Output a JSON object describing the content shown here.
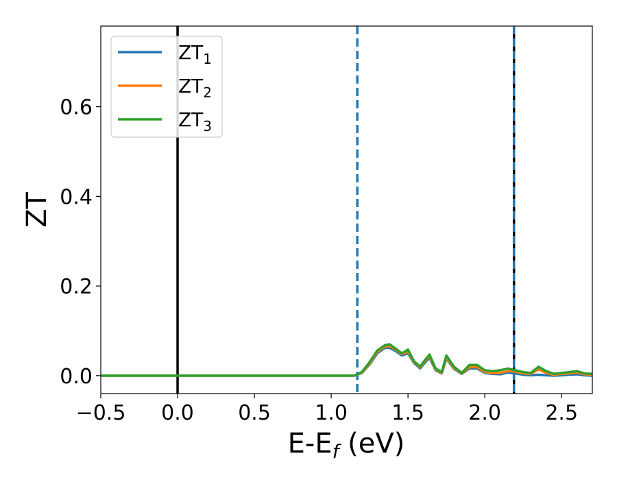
{
  "chart_data": {
    "type": "line",
    "xlabel": {
      "main": "E-E",
      "sub": "f",
      "tail": " (eV)"
    },
    "ylabel": "ZT",
    "xlim": [
      -0.5,
      2.7
    ],
    "ylim": [
      -0.04,
      0.78
    ],
    "xticks": [
      -0.5,
      0.0,
      0.5,
      1.0,
      1.5,
      2.0,
      2.5
    ],
    "xtick_labels": [
      "−0.5",
      "0.0",
      "0.5",
      "1.0",
      "1.5",
      "2.0",
      "2.5"
    ],
    "yticks": [
      0.0,
      0.2,
      0.4,
      0.6
    ],
    "ytick_labels": [
      "0.0",
      "0.2",
      "0.4",
      "0.6"
    ],
    "grid": false,
    "legend_position": "top-left",
    "series": [
      {
        "name": "ZT",
        "name_sub": "1",
        "color": "#1f77b4",
        "x": [
          -0.5,
          1.15,
          1.2,
          1.25,
          1.3,
          1.35,
          1.38,
          1.42,
          1.46,
          1.5,
          1.54,
          1.58,
          1.6,
          1.64,
          1.68,
          1.72,
          1.75,
          1.8,
          1.85,
          1.9,
          1.95,
          2.0,
          2.05,
          2.1,
          2.15,
          2.2,
          2.25,
          2.3,
          2.35,
          2.4,
          2.45,
          2.5,
          2.55,
          2.6,
          2.65,
          2.7
        ],
        "y": [
          0.0,
          0.0,
          0.006,
          0.025,
          0.05,
          0.062,
          0.062,
          0.055,
          0.045,
          0.05,
          0.028,
          0.016,
          0.025,
          0.04,
          0.012,
          0.005,
          0.038,
          0.015,
          0.004,
          0.016,
          0.016,
          0.006,
          0.004,
          0.003,
          0.007,
          0.005,
          0.002,
          0.001,
          0.002,
          0.001,
          0.0,
          0.001,
          0.002,
          0.003,
          0.001,
          0.0
        ]
      },
      {
        "name": "ZT",
        "name_sub": "2",
        "color": "#ff7f0e",
        "x": [
          -0.5,
          1.15,
          1.2,
          1.25,
          1.3,
          1.35,
          1.38,
          1.42,
          1.46,
          1.5,
          1.54,
          1.58,
          1.6,
          1.64,
          1.68,
          1.72,
          1.75,
          1.8,
          1.85,
          1.9,
          1.95,
          2.0,
          2.05,
          2.1,
          2.15,
          2.2,
          2.25,
          2.3,
          2.35,
          2.4,
          2.45,
          2.5,
          2.55,
          2.6,
          2.65,
          2.7
        ],
        "y": [
          0.0,
          0.0,
          0.007,
          0.027,
          0.053,
          0.065,
          0.066,
          0.058,
          0.048,
          0.054,
          0.03,
          0.018,
          0.028,
          0.044,
          0.014,
          0.006,
          0.041,
          0.017,
          0.005,
          0.019,
          0.019,
          0.008,
          0.006,
          0.006,
          0.01,
          0.009,
          0.005,
          0.004,
          0.014,
          0.006,
          0.002,
          0.004,
          0.005,
          0.007,
          0.003,
          0.002
        ]
      },
      {
        "name": "ZT",
        "name_sub": "3",
        "color": "#2ca02c",
        "x": [
          -0.5,
          1.15,
          1.2,
          1.25,
          1.3,
          1.35,
          1.38,
          1.42,
          1.46,
          1.5,
          1.54,
          1.58,
          1.6,
          1.64,
          1.68,
          1.72,
          1.75,
          1.8,
          1.85,
          1.9,
          1.95,
          2.0,
          2.05,
          2.1,
          2.15,
          2.2,
          2.25,
          2.3,
          2.35,
          2.4,
          2.45,
          2.5,
          2.55,
          2.6,
          2.65,
          2.7
        ],
        "y": [
          0.0,
          0.0,
          0.008,
          0.03,
          0.056,
          0.068,
          0.07,
          0.06,
          0.05,
          0.058,
          0.032,
          0.02,
          0.03,
          0.047,
          0.016,
          0.008,
          0.045,
          0.02,
          0.006,
          0.024,
          0.024,
          0.012,
          0.01,
          0.012,
          0.016,
          0.012,
          0.008,
          0.006,
          0.02,
          0.01,
          0.004,
          0.006,
          0.008,
          0.01,
          0.005,
          0.004
        ]
      }
    ],
    "vlines": [
      {
        "x": 0.0,
        "color": "#000000",
        "style": "solid"
      },
      {
        "x": 1.17,
        "color": "#1f77b4",
        "style": "dashed"
      },
      {
        "x": 2.19,
        "color": "#000000",
        "style": "solid"
      },
      {
        "x": 2.19,
        "color": "#1f77b4",
        "style": "dashed"
      }
    ]
  }
}
